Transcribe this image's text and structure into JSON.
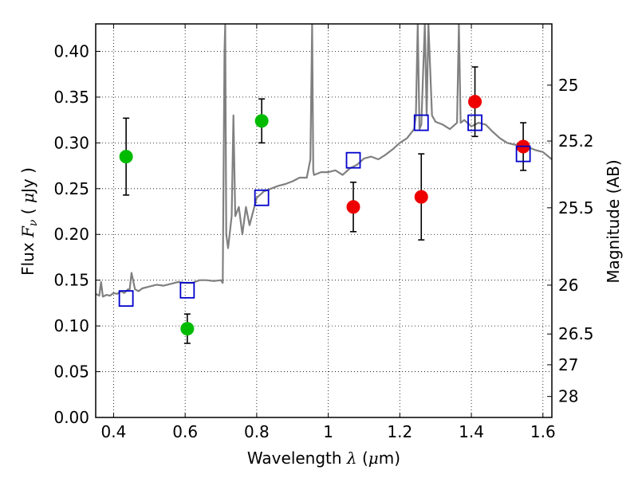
{
  "chart_data": {
    "type": "scatter",
    "xlabel": "Wavelength  λ (μm)",
    "ylabel": "Flux  F_ν  ( μJy )",
    "y2label": "Magnitude (AB)",
    "xlim": [
      0.35,
      1.625
    ],
    "ylim": [
      0.0,
      0.43
    ],
    "grid": true,
    "x_ticks": [
      0.4,
      0.6,
      0.8,
      1.0,
      1.2,
      1.4,
      1.6
    ],
    "x_tick_labels": [
      "0.4",
      "0.6",
      "0.8",
      "1",
      "1.2",
      "1.4",
      "1.6"
    ],
    "y_ticks": [
      0.0,
      0.05,
      0.1,
      0.15,
      0.2,
      0.25,
      0.3,
      0.35,
      0.4
    ],
    "y_tick_labels": [
      "0.00",
      "0.05",
      "0.10",
      "0.15",
      "0.20",
      "0.25",
      "0.30",
      "0.35",
      "0.40"
    ],
    "y2_ticks": [
      25,
      25.2,
      25.5,
      26,
      26.5,
      27,
      28
    ],
    "y2_tick_labels": [
      "25",
      "25.2",
      "25.5",
      "26",
      "26.5",
      "27",
      "28"
    ],
    "colors": {
      "green": "#00bb00",
      "red": "#ee0000",
      "blue": "#0000cc",
      "spectrum": "#808080",
      "errorbar": "#000000"
    },
    "series": [
      {
        "marker": "circle",
        "color": "#00bb00",
        "points": [
          {
            "x": 0.435,
            "y": 0.285,
            "yerr": 0.042
          },
          {
            "x": 0.606,
            "y": 0.097,
            "yerr": 0.016
          },
          {
            "x": 0.814,
            "y": 0.324,
            "yerr": 0.024
          }
        ]
      },
      {
        "marker": "circle",
        "color": "#ee0000",
        "points": [
          {
            "x": 1.07,
            "y": 0.23,
            "yerr": 0.027
          },
          {
            "x": 1.26,
            "y": 0.241,
            "yerr": 0.047
          },
          {
            "x": 1.41,
            "y": 0.345,
            "yerr": 0.038
          },
          {
            "x": 1.545,
            "y": 0.296,
            "yerr": 0.026
          }
        ]
      },
      {
        "marker": "square-open",
        "color": "#0000cc",
        "points": [
          {
            "x": 0.435,
            "y": 0.13
          },
          {
            "x": 0.606,
            "y": 0.139
          },
          {
            "x": 0.814,
            "y": 0.24
          },
          {
            "x": 1.07,
            "y": 0.281
          },
          {
            "x": 1.26,
            "y": 0.322
          },
          {
            "x": 1.41,
            "y": 0.322
          },
          {
            "x": 1.545,
            "y": 0.288
          }
        ]
      },
      {
        "type": "line",
        "color": "#808080",
        "x": [
          0.35,
          0.36,
          0.365,
          0.37,
          0.38,
          0.39,
          0.4,
          0.41,
          0.42,
          0.43,
          0.44,
          0.445,
          0.45,
          0.46,
          0.47,
          0.48,
          0.5,
          0.52,
          0.54,
          0.56,
          0.58,
          0.6,
          0.62,
          0.64,
          0.66,
          0.68,
          0.7,
          0.705,
          0.71,
          0.712,
          0.715,
          0.72,
          0.73,
          0.735,
          0.74,
          0.75,
          0.76,
          0.77,
          0.78,
          0.8,
          0.82,
          0.84,
          0.86,
          0.88,
          0.9,
          0.92,
          0.94,
          0.95,
          0.955,
          0.958,
          0.96,
          0.98,
          1.0,
          1.02,
          1.04,
          1.06,
          1.08,
          1.1,
          1.12,
          1.14,
          1.16,
          1.18,
          1.2,
          1.22,
          1.24,
          1.245,
          1.25,
          1.255,
          1.26,
          1.27,
          1.275,
          1.28,
          1.29,
          1.3,
          1.32,
          1.34,
          1.36,
          1.365,
          1.37,
          1.38,
          1.4,
          1.42,
          1.44,
          1.46,
          1.48,
          1.5,
          1.52,
          1.54,
          1.56,
          1.58,
          1.6,
          1.625
        ],
        "y": [
          0.135,
          0.133,
          0.148,
          0.132,
          0.134,
          0.133,
          0.136,
          0.135,
          0.138,
          0.136,
          0.14,
          0.14,
          0.158,
          0.14,
          0.138,
          0.141,
          0.143,
          0.145,
          0.144,
          0.146,
          0.148,
          0.147,
          0.147,
          0.15,
          0.15,
          0.149,
          0.15,
          0.147,
          0.4,
          0.43,
          0.2,
          0.185,
          0.22,
          0.33,
          0.22,
          0.23,
          0.2,
          0.23,
          0.21,
          0.24,
          0.247,
          0.25,
          0.253,
          0.255,
          0.258,
          0.262,
          0.262,
          0.282,
          0.43,
          0.27,
          0.265,
          0.268,
          0.268,
          0.27,
          0.265,
          0.272,
          0.276,
          0.283,
          0.285,
          0.282,
          0.287,
          0.293,
          0.3,
          0.305,
          0.315,
          0.33,
          0.43,
          0.315,
          0.32,
          0.43,
          0.33,
          0.43,
          0.33,
          0.323,
          0.32,
          0.315,
          0.322,
          0.43,
          0.322,
          0.325,
          0.318,
          0.322,
          0.32,
          0.312,
          0.305,
          0.3,
          0.298,
          0.298,
          0.295,
          0.292,
          0.29,
          0.282
        ]
      }
    ]
  }
}
